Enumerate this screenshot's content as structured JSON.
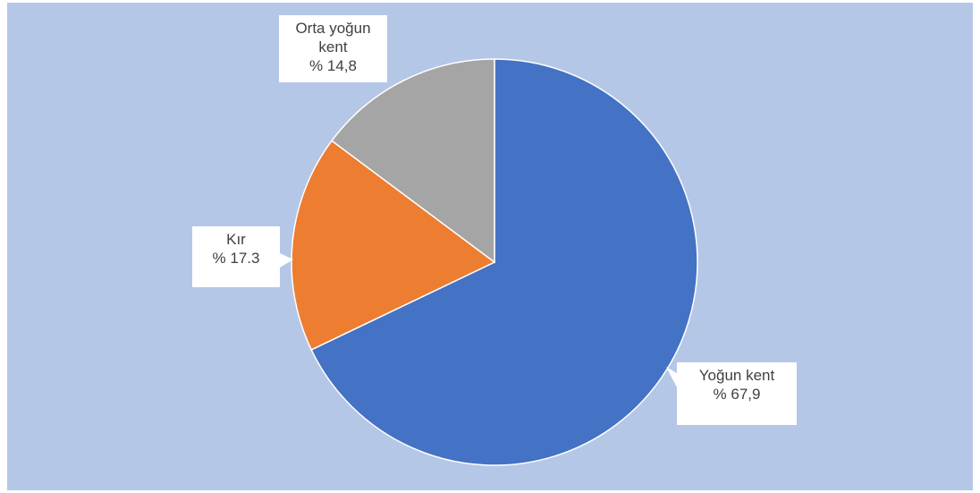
{
  "chart_data": {
    "type": "pie",
    "categories": [
      "Yoğun kent",
      "Kır",
      "Orta yoğun kent"
    ],
    "values": [
      67.9,
      17.3,
      14.8
    ],
    "value_labels": [
      "% 67,9",
      "% 17.3",
      "% 14,8"
    ],
    "colors": [
      "#4472c4",
      "#ed7d31",
      "#a5a5a5"
    ]
  }
}
